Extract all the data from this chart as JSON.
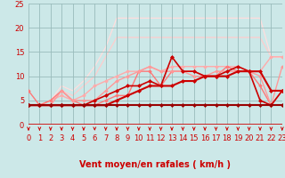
{
  "bg_color": "#cce8e8",
  "grid_color": "#99bbbb",
  "xlabel": "Vent moyen/en rafales ( km/h )",
  "xlim": [
    0,
    23
  ],
  "ylim": [
    0,
    25
  ],
  "yticks": [
    0,
    5,
    10,
    15,
    20,
    25
  ],
  "xticks": [
    0,
    1,
    2,
    3,
    4,
    5,
    6,
    7,
    8,
    9,
    10,
    11,
    12,
    13,
    14,
    15,
    16,
    17,
    18,
    19,
    20,
    21,
    22,
    23
  ],
  "lines": [
    {
      "x": [
        0,
        1,
        2,
        3,
        4,
        5,
        6,
        7,
        8,
        9,
        10,
        11,
        12,
        13,
        14,
        15,
        16,
        17,
        18,
        19,
        20,
        21,
        22,
        23
      ],
      "y": [
        4,
        4,
        4,
        4,
        4,
        4,
        4,
        4,
        5,
        6,
        7,
        8,
        8,
        8,
        9,
        9,
        10,
        10,
        10,
        11,
        11,
        11,
        7,
        7
      ],
      "color": "#cc0000",
      "lw": 1.5,
      "marker": "D",
      "ms": 2.0,
      "zorder": 6
    },
    {
      "x": [
        0,
        1,
        2,
        3,
        4,
        5,
        6,
        7,
        8,
        9,
        10,
        11,
        12,
        13,
        14,
        15,
        16,
        17,
        18,
        19,
        20,
        21,
        22,
        23
      ],
      "y": [
        4,
        4,
        4,
        4,
        4,
        4,
        5,
        6,
        7,
        8,
        8,
        9,
        8,
        14,
        11,
        11,
        10,
        10,
        11,
        12,
        11,
        5,
        4,
        7
      ],
      "color": "#cc0000",
      "lw": 1.2,
      "marker": "D",
      "ms": 2.0,
      "zorder": 5
    },
    {
      "x": [
        0,
        1,
        2,
        3,
        4,
        5,
        6,
        7,
        8,
        9,
        10,
        11,
        12,
        13,
        14,
        15,
        16,
        17,
        18,
        19,
        20,
        21,
        22,
        23
      ],
      "y": [
        4,
        4,
        4,
        4,
        4,
        4,
        4,
        4,
        4,
        4,
        4,
        4,
        4,
        4,
        4,
        4,
        4,
        4,
        4,
        4,
        4,
        4,
        4,
        4
      ],
      "color": "#990000",
      "lw": 1.5,
      "marker": "D",
      "ms": 2.0,
      "zorder": 7
    },
    {
      "x": [
        0,
        1,
        2,
        3,
        4,
        5,
        6,
        7,
        8,
        9,
        10,
        11,
        12,
        13,
        14,
        15,
        16,
        17,
        18,
        19,
        20,
        21,
        22,
        23
      ],
      "y": [
        7,
        4,
        5,
        7,
        5,
        4,
        4,
        5,
        6,
        6,
        11,
        11,
        8,
        11,
        11,
        11,
        10,
        10,
        12,
        11,
        11,
        8,
        4,
        7
      ],
      "color": "#ff7777",
      "lw": 1.0,
      "marker": "D",
      "ms": 1.8,
      "zorder": 3
    },
    {
      "x": [
        0,
        1,
        2,
        3,
        4,
        5,
        6,
        7,
        8,
        9,
        10,
        11,
        12,
        13,
        14,
        15,
        16,
        17,
        18,
        19,
        20,
        21,
        22,
        23
      ],
      "y": [
        4,
        4,
        4,
        7,
        5,
        5,
        5,
        7,
        9,
        10,
        11,
        12,
        11,
        11,
        11,
        10,
        10,
        11,
        11,
        11,
        11,
        10,
        4,
        12
      ],
      "color": "#ff9999",
      "lw": 1.0,
      "marker": "D",
      "ms": 1.8,
      "zorder": 3
    },
    {
      "x": [
        0,
        1,
        2,
        3,
        4,
        5,
        6,
        7,
        8,
        9,
        10,
        11,
        12,
        13,
        14,
        15,
        16,
        17,
        18,
        19,
        20,
        21,
        22,
        23
      ],
      "y": [
        4,
        4,
        5,
        6,
        5,
        6,
        8,
        9,
        10,
        11,
        11,
        12,
        11,
        12,
        12,
        12,
        12,
        12,
        12,
        12,
        11,
        11,
        14,
        14
      ],
      "color": "#ffaaaa",
      "lw": 1.0,
      "marker": "D",
      "ms": 1.8,
      "zorder": 2
    },
    {
      "x": [
        0,
        1,
        2,
        3,
        4,
        5,
        6,
        7,
        8,
        9,
        10,
        11,
        12,
        13,
        14,
        15,
        16,
        17,
        18,
        19,
        20,
        21,
        22,
        23
      ],
      "y": [
        4,
        4,
        5,
        7,
        6,
        8,
        10,
        14,
        18,
        18,
        18,
        18,
        18,
        18,
        18,
        18,
        18,
        18,
        18,
        18,
        18,
        18,
        14,
        14
      ],
      "color": "#ffcccc",
      "lw": 0.9,
      "marker": null,
      "ms": 0,
      "zorder": 1
    },
    {
      "x": [
        0,
        1,
        2,
        3,
        4,
        5,
        6,
        7,
        8,
        9,
        10,
        11,
        12,
        13,
        14,
        15,
        16,
        17,
        18,
        19,
        20,
        21,
        22,
        23
      ],
      "y": [
        4,
        4,
        5,
        8,
        7,
        9,
        12,
        16,
        22,
        22,
        22,
        22,
        22,
        22,
        22,
        22,
        22,
        22,
        22,
        22,
        22,
        22,
        14,
        14
      ],
      "color": "#ffdddd",
      "lw": 0.9,
      "marker": null,
      "ms": 0,
      "zorder": 1
    }
  ],
  "arrow_color": "#cc0000",
  "xlabel_color": "#cc0000",
  "xlabel_fontsize": 7,
  "tick_color": "#cc0000",
  "tick_fontsize": 6,
  "axis_line_color": "#cc0000"
}
